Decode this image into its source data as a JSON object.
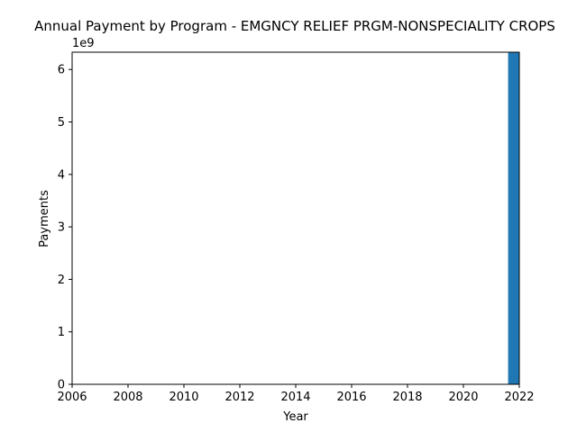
{
  "chart_data": {
    "type": "bar",
    "title": "Annual Payment by Program - EMGNCY RELIEF PRGM-NONSPECIALITY CROPS",
    "xlabel": "Year",
    "ylabel": "Payments",
    "offset_text": "1e9",
    "x": [
      2022
    ],
    "values": [
      6.33
    ],
    "values_scale": 1000000000,
    "xlim": [
      2006,
      2022
    ],
    "ylim": [
      0,
      6.33
    ],
    "xticks": [
      "2006",
      "2008",
      "2010",
      "2012",
      "2014",
      "2016",
      "2018",
      "2020",
      "2022"
    ],
    "yticks": [
      "0",
      "1",
      "2",
      "3",
      "4",
      "5",
      "6"
    ],
    "bar_color": "#1f77b4",
    "grid": false,
    "legend": "none"
  }
}
